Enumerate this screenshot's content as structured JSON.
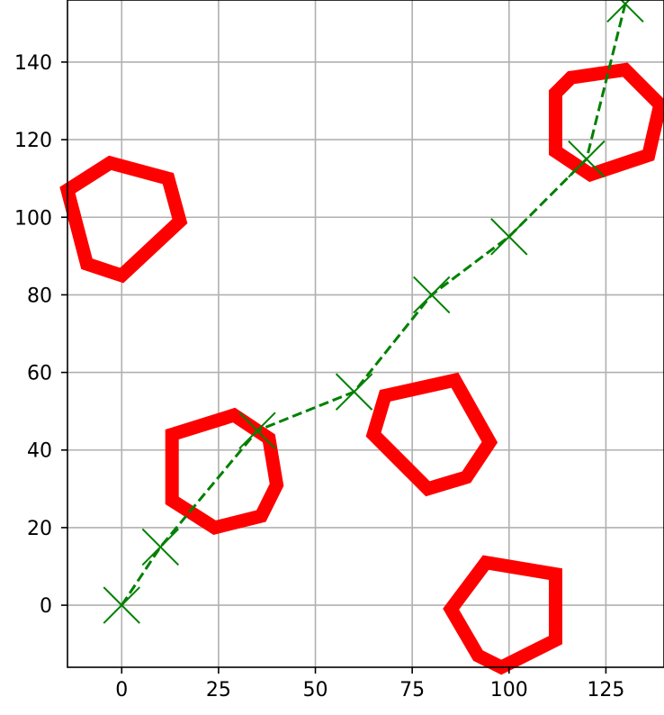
{
  "chart_data": {
    "type": "line",
    "title": "",
    "xlabel": "",
    "ylabel": "",
    "xlim": [
      -14,
      140
    ],
    "ylim": [
      -16,
      156
    ],
    "x_ticks": [
      0,
      25,
      50,
      75,
      100,
      125
    ],
    "y_ticks": [
      0,
      20,
      40,
      60,
      80,
      100,
      120,
      140
    ],
    "x_tick_labels": [
      "0",
      "25",
      "50",
      "75",
      "100",
      "125"
    ],
    "y_tick_labels": [
      "0",
      "20",
      "40",
      "60",
      "80",
      "100",
      "120",
      "140"
    ],
    "grid": true,
    "series": [
      {
        "type": "line",
        "line_style": "dashed",
        "marker": "x",
        "color": "#008000",
        "x": [
          0,
          10,
          35,
          60,
          80,
          100,
          120,
          130
        ],
        "y": [
          0,
          15,
          45,
          55,
          80,
          95,
          115,
          155
        ]
      }
    ],
    "polygons": [
      {
        "color": "#ff0000",
        "points": [
          [
            -14,
            107
          ],
          [
            -3,
            114
          ],
          [
            12,
            110
          ],
          [
            15,
            99
          ],
          [
            0,
            85
          ],
          [
            -9,
            88
          ]
        ]
      },
      {
        "color": "#ff0000",
        "points": [
          [
            13,
            44
          ],
          [
            29,
            49
          ],
          [
            38,
            43
          ],
          [
            40,
            31
          ],
          [
            36,
            23
          ],
          [
            24,
            20
          ],
          [
            13,
            27
          ]
        ]
      },
      {
        "color": "#ff0000",
        "points": [
          [
            68,
            54
          ],
          [
            86,
            58
          ],
          [
            95,
            42
          ],
          [
            89,
            33
          ],
          [
            79,
            30
          ],
          [
            65,
            44
          ]
        ]
      },
      {
        "color": "#ff0000",
        "points": [
          [
            94,
            11
          ],
          [
            112,
            8
          ],
          [
            112,
            -9
          ],
          [
            98,
            -16
          ],
          [
            92,
            -13
          ],
          [
            85,
            -1
          ]
        ]
      },
      {
        "color": "#ff0000",
        "points": [
          [
            116,
            136
          ],
          [
            130,
            138
          ],
          [
            139,
            129
          ],
          [
            136,
            116
          ],
          [
            121,
            111
          ],
          [
            112,
            117
          ],
          [
            112,
            132
          ]
        ]
      }
    ]
  }
}
